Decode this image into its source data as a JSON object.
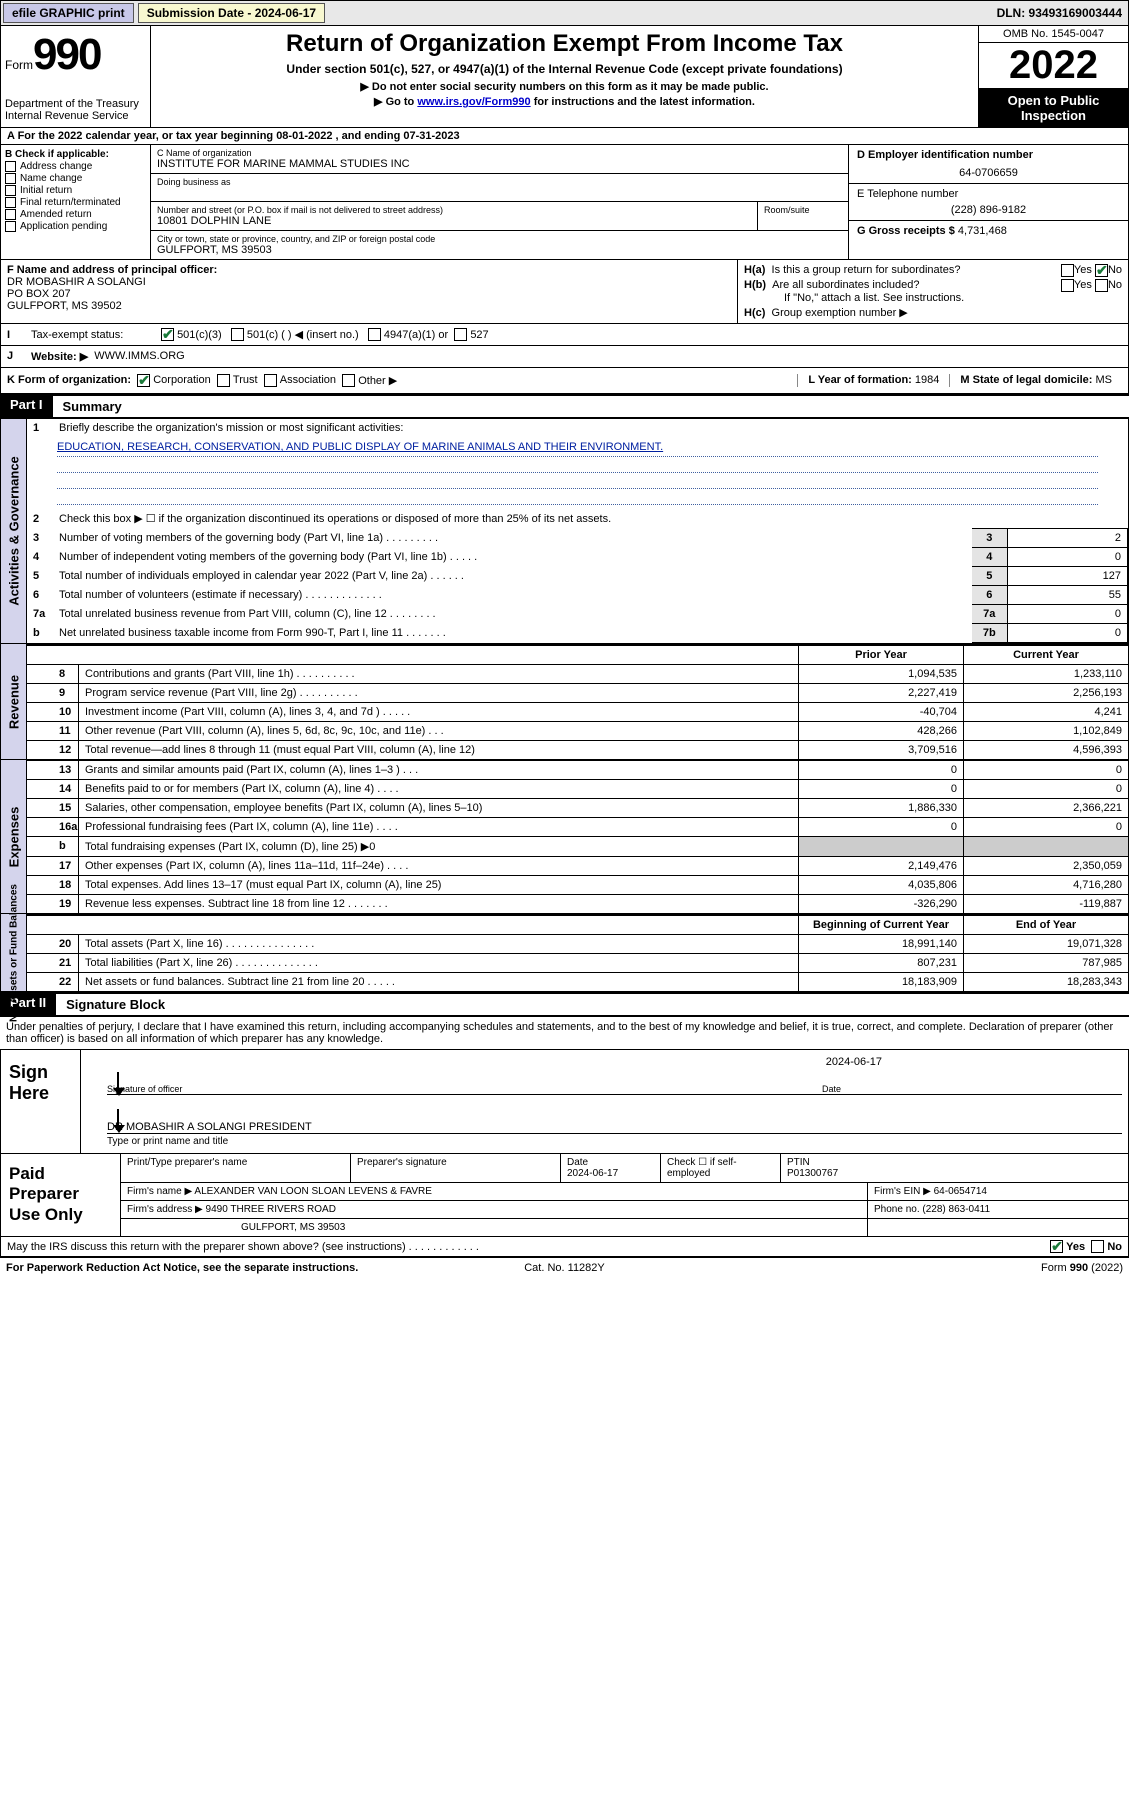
{
  "topbar": {
    "efile_btn": "efile GRAPHIC print",
    "sub_date_label": "Submission Date - 2024-06-17",
    "dln": "DLN: 93493169003444"
  },
  "header": {
    "form_word": "Form",
    "form_num": "990",
    "dept": "Department of the Treasury\nInternal Revenue Service",
    "title": "Return of Organization Exempt From Income Tax",
    "sub1": "Under section 501(c), 527, or 4947(a)(1) of the Internal Revenue Code (except private foundations)",
    "sub2": "▶ Do not enter social security numbers on this form as it may be made public.",
    "sub3_pre": "▶ Go to ",
    "sub3_link": "www.irs.gov/Form990",
    "sub3_post": " for instructions and the latest information.",
    "omb": "OMB No. 1545-0047",
    "year": "2022",
    "open": "Open to Public Inspection"
  },
  "row_a": "A For the 2022 calendar year, or tax year beginning 08-01-2022    , and ending 07-31-2023",
  "col_b": {
    "hdr": "B Check if applicable:",
    "items": [
      "Address change",
      "Name change",
      "Initial return",
      "Final return/terminated",
      "Amended return",
      "Application pending"
    ]
  },
  "col_c": {
    "name_label": "C Name of organization",
    "name": "INSTITUTE FOR MARINE MAMMAL STUDIES INC",
    "dba_label": "Doing business as",
    "addr_label": "Number and street (or P.O. box if mail is not delivered to street address)",
    "addr": "10801 DOLPHIN LANE",
    "room_label": "Room/suite",
    "city_label": "City or town, state or province, country, and ZIP or foreign postal code",
    "city": "GULFPORT, MS  39503"
  },
  "col_d": {
    "label": "D Employer identification number",
    "val": "64-0706659"
  },
  "col_e": {
    "label": "E Telephone number",
    "val": "(228) 896-9182"
  },
  "col_g": {
    "label": "G Gross receipts $",
    "val": "4,731,468"
  },
  "block_f": {
    "label": "F  Name and address of principal officer:",
    "name": "DR MOBASHIR A SOLANGI",
    "addr1": "PO BOX 207",
    "addr2": "GULFPORT, MS  39502"
  },
  "block_h": {
    "ha": "Is this a group return for subordinates?",
    "hb": "Are all subordinates included?",
    "hb_note": "If \"No,\" attach a list. See instructions.",
    "hc": "Group exemption number ▶",
    "yes": "Yes",
    "no": "No"
  },
  "row_i": {
    "label": "Tax-exempt status:",
    "opt1": "501(c)(3)",
    "opt2": "501(c) (    ) ◀ (insert no.)",
    "opt3": "4947(a)(1) or",
    "opt4": "527"
  },
  "row_j": {
    "label": "Website: ▶",
    "val": "WWW.IMMS.ORG"
  },
  "row_k": {
    "label": "K Form of organization:",
    "o1": "Corporation",
    "o2": "Trust",
    "o3": "Association",
    "o4": "Other ▶",
    "l_label": "L Year of formation:",
    "l_val": "1984",
    "m_label": "M State of legal domicile:",
    "m_val": "MS"
  },
  "part1": {
    "num": "Part I",
    "title": "Summary"
  },
  "summary": {
    "line1_label": "Briefly describe the organization's mission or most significant activities:",
    "line1_text": "EDUCATION, RESEARCH, CONSERVATION, AND PUBLIC DISPLAY OF MARINE ANIMALS AND THEIR ENVIRONMENT.",
    "line2": "Check this box ▶ ☐  if the organization discontinued its operations or disposed of more than 25% of its net assets.",
    "lines_3_7": [
      {
        "n": "3",
        "d": "Number of voting members of the governing body (Part VI, line 1a)   .   .   .   .   .   .   .   .   .",
        "rn": "3",
        "v": "2"
      },
      {
        "n": "4",
        "d": "Number of independent voting members of the governing body (Part VI, line 1b)   .   .   .   .   .",
        "rn": "4",
        "v": "0"
      },
      {
        "n": "5",
        "d": "Total number of individuals employed in calendar year 2022 (Part V, line 2a)   .   .   .   .   .   .",
        "rn": "5",
        "v": "127"
      },
      {
        "n": "6",
        "d": "Total number of volunteers (estimate if necessary)   .   .   .   .   .   .   .   .   .   .   .   .   .",
        "rn": "6",
        "v": "55"
      },
      {
        "n": "7a",
        "d": "Total unrelated business revenue from Part VIII, column (C), line 12   .   .   .   .   .   .   .   .",
        "rn": "7a",
        "v": "0"
      },
      {
        "n": "b",
        "d": "Net unrelated business taxable income from Form 990-T, Part I, line 11   .   .   .   .   .   .   .",
        "rn": "7b",
        "v": "0"
      }
    ]
  },
  "year_hdr": {
    "py": "Prior Year",
    "cy": "Current Year"
  },
  "revenue": {
    "label": "Revenue",
    "rows": [
      {
        "n": "8",
        "d": "Contributions and grants (Part VIII, line 1h)   .   .   .   .   .   .   .   .   .   .",
        "c1": "1,094,535",
        "c2": "1,233,110"
      },
      {
        "n": "9",
        "d": "Program service revenue (Part VIII, line 2g)   .   .   .   .   .   .   .   .   .   .",
        "c1": "2,227,419",
        "c2": "2,256,193"
      },
      {
        "n": "10",
        "d": "Investment income (Part VIII, column (A), lines 3, 4, and 7d )   .   .   .   .   .",
        "c1": "-40,704",
        "c2": "4,241"
      },
      {
        "n": "11",
        "d": "Other revenue (Part VIII, column (A), lines 5, 6d, 8c, 9c, 10c, and 11e)   .   .   .",
        "c1": "428,266",
        "c2": "1,102,849"
      },
      {
        "n": "12",
        "d": "Total revenue—add lines 8 through 11 (must equal Part VIII, column (A), line 12)",
        "c1": "3,709,516",
        "c2": "4,596,393"
      }
    ]
  },
  "expenses": {
    "label": "Expenses",
    "rows": [
      {
        "n": "13",
        "d": "Grants and similar amounts paid (Part IX, column (A), lines 1–3 )   .   .   .",
        "c1": "0",
        "c2": "0"
      },
      {
        "n": "14",
        "d": "Benefits paid to or for members (Part IX, column (A), line 4)   .   .   .   .",
        "c1": "0",
        "c2": "0"
      },
      {
        "n": "15",
        "d": "Salaries, other compensation, employee benefits (Part IX, column (A), lines 5–10)",
        "c1": "1,886,330",
        "c2": "2,366,221"
      },
      {
        "n": "16a",
        "d": "Professional fundraising fees (Part IX, column (A), line 11e)   .   .   .   .",
        "c1": "0",
        "c2": "0"
      },
      {
        "n": "b",
        "d": "Total fundraising expenses (Part IX, column (D), line 25) ▶0",
        "c1": "",
        "c2": "",
        "shade": true
      },
      {
        "n": "17",
        "d": "Other expenses (Part IX, column (A), lines 11a–11d, 11f–24e)   .   .   .   .",
        "c1": "2,149,476",
        "c2": "2,350,059"
      },
      {
        "n": "18",
        "d": "Total expenses. Add lines 13–17 (must equal Part IX, column (A), line 25)",
        "c1": "4,035,806",
        "c2": "4,716,280"
      },
      {
        "n": "19",
        "d": "Revenue less expenses. Subtract line 18 from line 12   .   .   .   .   .   .   .",
        "c1": "-326,290",
        "c2": "-119,887"
      }
    ]
  },
  "netassets": {
    "label": "Net Assets or Fund Balances",
    "hdr_c1": "Beginning of Current Year",
    "hdr_c2": "End of Year",
    "rows": [
      {
        "n": "20",
        "d": "Total assets (Part X, line 16)   .   .   .   .   .   .   .   .   .   .   .   .   .   .   .",
        "c1": "18,991,140",
        "c2": "19,071,328"
      },
      {
        "n": "21",
        "d": "Total liabilities (Part X, line 26)   .   .   .   .   .   .   .   .   .   .   .   .   .   .",
        "c1": "807,231",
        "c2": "787,985"
      },
      {
        "n": "22",
        "d": "Net assets or fund balances. Subtract line 21 from line 20   .   .   .   .   .",
        "c1": "18,183,909",
        "c2": "18,283,343"
      }
    ]
  },
  "part2": {
    "num": "Part II",
    "title": "Signature Block"
  },
  "decl": "Under penalties of perjury, I declare that I have examined this return, including accompanying schedules and statements, and to the best of my knowledge and belief, it is true, correct, and complete. Declaration of preparer (other than officer) is based on all information of which preparer has any knowledge.",
  "sign": {
    "label": "Sign Here",
    "sig_of_officer": "Signature of officer",
    "date_label": "Date",
    "date_val": "2024-06-17",
    "name": "DR MOBASHIR A SOLANGI PRESIDENT",
    "name_label": "Type or print name and title"
  },
  "prep": {
    "label": "Paid Preparer Use Only",
    "r1": {
      "c1": "Print/Type preparer's name",
      "c2": "Preparer's signature",
      "c3l": "Date",
      "c3v": "2024-06-17",
      "c4l": "Check ☐ if self-employed",
      "c5l": "PTIN",
      "c5v": "P01300767"
    },
    "r2": {
      "c1l": "Firm's name      ▶",
      "c1v": "ALEXANDER VAN LOON SLOAN LEVENS & FAVRE",
      "c2l": "Firm's EIN ▶",
      "c2v": "64-0654714"
    },
    "r3": {
      "c1l": "Firm's address ▶",
      "c1v": "9490 THREE RIVERS ROAD",
      "c2l": "Phone no.",
      "c2v": "(228) 863-0411"
    },
    "r4": {
      "c1": "GULFPORT, MS  39503"
    }
  },
  "may_irs": {
    "q": "May the IRS discuss this return with the preparer shown above? (see instructions)   .   .   .   .   .   .   .   .   .   .   .   .",
    "yes": "Yes",
    "no": "No"
  },
  "footer": {
    "l": "For Paperwork Reduction Act Notice, see the separate instructions.",
    "m": "Cat. No. 11282Y",
    "r": "Form 990 (2022)"
  },
  "vert": {
    "ag": "Activities & Governance"
  }
}
